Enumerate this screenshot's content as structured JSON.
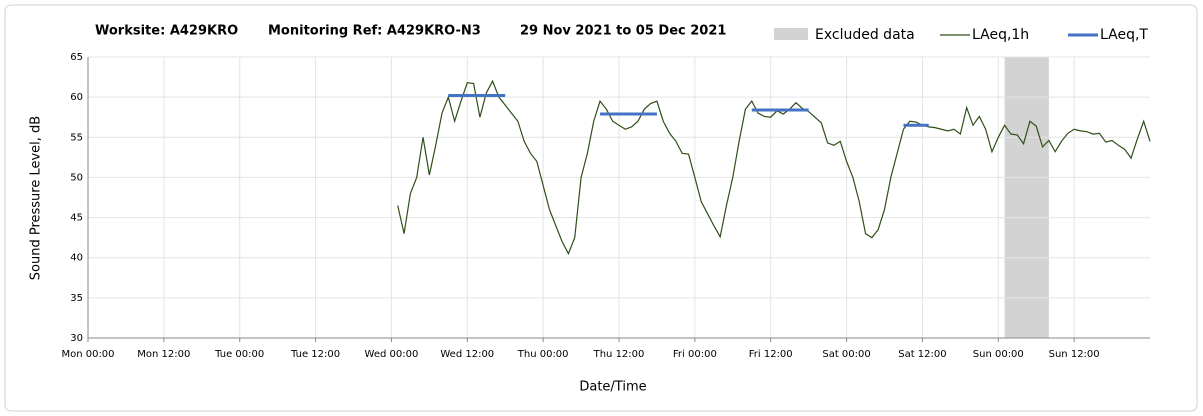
{
  "chart_data": {
    "type": "line",
    "title_parts": [
      "Worksite: A429KRO",
      "Monitoring Ref: A429KRO-N3",
      "29 Nov 2021 to 05 Dec 2021"
    ],
    "xlabel": "Date/Time",
    "ylabel": "Sound Pressure Level, dB",
    "xlim": [
      0,
      168
    ],
    "ylim": [
      30,
      65
    ],
    "yticks": [
      30,
      35,
      40,
      45,
      50,
      55,
      60,
      65
    ],
    "xticks": [
      {
        "value": 0,
        "label": "Mon 00:00"
      },
      {
        "value": 12,
        "label": "Mon 12:00"
      },
      {
        "value": 24,
        "label": "Tue 00:00"
      },
      {
        "value": 36,
        "label": "Tue 12:00"
      },
      {
        "value": 48,
        "label": "Wed 00:00"
      },
      {
        "value": 60,
        "label": "Wed 12:00"
      },
      {
        "value": 72,
        "label": "Thu 00:00"
      },
      {
        "value": 84,
        "label": "Thu 12:00"
      },
      {
        "value": 96,
        "label": "Fri 00:00"
      },
      {
        "value": 108,
        "label": "Fri 12:00"
      },
      {
        "value": 120,
        "label": "Sat 00:00"
      },
      {
        "value": 132,
        "label": "Sat 12:00"
      },
      {
        "value": 144,
        "label": "Sun 00:00"
      },
      {
        "value": 156,
        "label": "Sun 12:00"
      }
    ],
    "grid": true,
    "excluded": {
      "name": "Excluded data",
      "color": "#d3d3d3",
      "range": [
        145,
        152
      ]
    },
    "series": [
      {
        "name": "LAeq,1h",
        "color": "#2f4f1a",
        "x": [
          49,
          50,
          51,
          52,
          53,
          54,
          55,
          56,
          57,
          58,
          59,
          60,
          61,
          62,
          63,
          64,
          65,
          66,
          67,
          68,
          69,
          70,
          71,
          72,
          73,
          74,
          75,
          76,
          77,
          78,
          79,
          80,
          81,
          82,
          83,
          84,
          85,
          86,
          87,
          88,
          89,
          90,
          91,
          92,
          93,
          94,
          95,
          96,
          97,
          98,
          99,
          100,
          101,
          102,
          103,
          104,
          105,
          106,
          107,
          108,
          109,
          110,
          111,
          112,
          113,
          114,
          115,
          116,
          117,
          118,
          119,
          120,
          121,
          122,
          123,
          124,
          125,
          126,
          127,
          128,
          129,
          130,
          131,
          132,
          133,
          134,
          135,
          136,
          137,
          138,
          139,
          140,
          141,
          142,
          143,
          144,
          145,
          146,
          147,
          148,
          149,
          150,
          151,
          152,
          153,
          154,
          155,
          156,
          157,
          158,
          159,
          160,
          161,
          162,
          163,
          164,
          165,
          166,
          167,
          168
        ],
        "values": [
          46.5,
          43,
          48,
          50,
          55,
          50.3,
          54,
          58,
          60,
          57,
          59.5,
          61.8,
          61.7,
          57.5,
          60.5,
          62,
          60,
          59,
          58,
          57,
          54.5,
          53,
          52,
          49,
          46,
          44,
          42,
          40.5,
          42.5,
          50,
          53,
          57,
          59.5,
          58.5,
          57,
          56.5,
          56,
          56.3,
          57,
          58.5,
          59.2,
          59.5,
          57,
          55.5,
          54.5,
          53,
          52.9,
          50,
          47,
          45.5,
          44,
          42.6,
          46.5,
          50,
          54.5,
          58.5,
          59.5,
          58,
          57.6,
          57.5,
          58.3,
          57.9,
          58.5,
          59.3,
          58.6,
          58.2,
          57.5,
          56.8,
          54.3,
          54,
          54.5,
          52,
          50,
          47,
          43,
          42.5,
          43.5,
          46,
          50,
          53,
          56,
          57,
          56.9,
          56.5,
          56.3,
          56.2,
          56,
          55.8,
          56,
          55.4,
          58.7,
          56.5,
          57.6,
          56,
          53.2,
          55,
          56.5,
          55.4,
          55.3,
          54.2,
          57,
          56.4,
          53.8,
          54.6,
          53.2,
          54.5,
          55.5,
          56,
          55.8,
          55.7,
          55.4,
          55.5,
          54.4,
          54.6,
          54,
          53.5,
          52.4,
          54.8,
          57,
          54.5
        ]
      },
      {
        "name": "LAeq,T",
        "color": "#4472c4",
        "x_start": [
          57,
          81,
          105,
          129
        ],
        "x_end": [
          66,
          90,
          114,
          133
        ],
        "values": [
          60.2,
          57.9,
          58.4,
          56.5
        ]
      }
    ]
  }
}
